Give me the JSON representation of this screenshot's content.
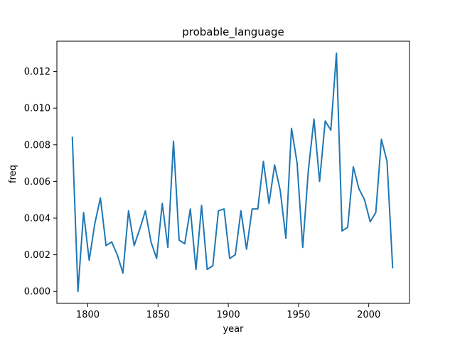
{
  "chart_data": {
    "type": "line",
    "title": "probable_language",
    "xlabel": "year",
    "ylabel": "freq",
    "xlim": [
      1778,
      2029
    ],
    "ylim": [
      -0.00065,
      0.01365
    ],
    "xticks": [
      1800,
      1850,
      1900,
      1950,
      2000
    ],
    "yticks": [
      0.0,
      0.002,
      0.004,
      0.006,
      0.008,
      0.01,
      0.012
    ],
    "ytick_labels": [
      "0.000",
      "0.002",
      "0.004",
      "0.006",
      "0.008",
      "0.010",
      "0.012"
    ],
    "grid": false,
    "color": "#1f77b4",
    "series": [
      {
        "x": [
          1789,
          1793,
          1797,
          1801,
          1805,
          1809,
          1813,
          1817,
          1821,
          1825,
          1829,
          1833,
          1837,
          1841,
          1845,
          1849,
          1853,
          1857,
          1861,
          1865,
          1869,
          1873,
          1877,
          1881,
          1885,
          1889,
          1893,
          1897,
          1901,
          1905,
          1909,
          1913,
          1917,
          1921,
          1925,
          1929,
          1933,
          1937,
          1941,
          1945,
          1949,
          1953,
          1957,
          1961,
          1965,
          1969,
          1973,
          1977,
          1981,
          1985,
          1989,
          1993,
          1997,
          2001,
          2005,
          2009,
          2013,
          2017
        ],
        "values": [
          0.0084,
          0.0,
          0.0043,
          0.0017,
          0.0037,
          0.0051,
          0.0025,
          0.0027,
          0.002,
          0.001,
          0.0044,
          0.0025,
          0.0034,
          0.0044,
          0.0027,
          0.0018,
          0.0048,
          0.0024,
          0.0082,
          0.0028,
          0.0026,
          0.0045,
          0.0012,
          0.0047,
          0.0012,
          0.0014,
          0.0044,
          0.0045,
          0.0018,
          0.002,
          0.0044,
          0.0023,
          0.0045,
          0.0045,
          0.0071,
          0.0048,
          0.0069,
          0.0055,
          0.0029,
          0.0089,
          0.007,
          0.0024,
          0.0066,
          0.0094,
          0.006,
          0.0093,
          0.0088,
          0.013,
          0.0033,
          0.0035,
          0.0068,
          0.0056,
          0.005,
          0.0038,
          0.0043,
          0.0083,
          0.0071,
          0.0013
        ]
      }
    ]
  }
}
